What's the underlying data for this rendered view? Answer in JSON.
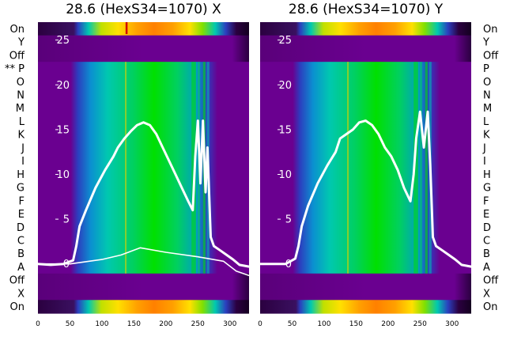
{
  "chart_data": [
    {
      "type": "heatmap",
      "title": "28.6 (HexS34=1070) X",
      "row_labels": [
        "On",
        "Y",
        "Off",
        "** P",
        "O",
        "N",
        "M",
        "L",
        "K",
        "J",
        "I",
        "H",
        "G",
        "F",
        "E",
        "D",
        "C",
        "B",
        "A",
        "Off",
        "X",
        "On"
      ],
      "x_ticks": [
        "0",
        "50",
        "100",
        "150",
        "200",
        "250",
        "300"
      ],
      "xlim": [
        0,
        330
      ],
      "y_ticks": [
        "0",
        "5",
        "10",
        "15",
        "20",
        "25"
      ],
      "ylim": [
        -5.5,
        27
      ],
      "colormap": [
        "#2b0040",
        "#5a007a",
        "#6a0090",
        "#2b3fbf",
        "#0b8fd0",
        "#00c8b0",
        "#00d060",
        "#00e000",
        "#c0e000",
        "#ffe000",
        "#ffa000",
        "#ff7000"
      ],
      "series": [
        {
          "points": [
            [
              0,
              0
            ],
            [
              20,
              -0.1
            ],
            [
              40,
              0
            ],
            [
              55,
              0.4
            ],
            [
              60,
              2
            ],
            [
              65,
              4.2
            ],
            [
              75,
              6
            ],
            [
              90,
              8.5
            ],
            [
              105,
              10.5
            ],
            [
              118,
              12
            ],
            [
              125,
              13
            ],
            [
              135,
              14
            ],
            [
              145,
              14.8
            ],
            [
              155,
              15.5
            ],
            [
              165,
              15.8
            ],
            [
              175,
              15.5
            ],
            [
              185,
              14.5
            ],
            [
              195,
              13
            ],
            [
              205,
              11.5
            ],
            [
              215,
              10
            ],
            [
              225,
              8.5
            ],
            [
              235,
              7
            ],
            [
              242,
              6
            ],
            [
              246,
              12
            ],
            [
              250,
              16
            ],
            [
              254,
              9
            ],
            [
              258,
              16
            ],
            [
              262,
              8
            ],
            [
              265,
              13
            ],
            [
              270,
              3
            ],
            [
              275,
              2
            ],
            [
              285,
              1.5
            ],
            [
              295,
              1
            ],
            [
              305,
              0.5
            ],
            [
              315,
              -0.1
            ],
            [
              330,
              -0.3
            ]
          ]
        },
        {
          "points": [
            [
              0,
              0
            ],
            [
              50,
              0
            ],
            [
              100,
              0.5
            ],
            [
              130,
              1
            ],
            [
              160,
              1.8
            ],
            [
              200,
              1.3
            ],
            [
              250,
              0.8
            ],
            [
              290,
              0.3
            ],
            [
              310,
              -0.8
            ],
            [
              330,
              -1.3
            ]
          ]
        }
      ]
    },
    {
      "type": "heatmap",
      "title": "28.6 (HexS34=1070) Y",
      "row_labels": [
        "On",
        "Y",
        "Off",
        "P",
        "O",
        "N",
        "M",
        "L",
        "K",
        "J",
        "I",
        "H",
        "G",
        "F",
        "E",
        "D",
        "C",
        "B",
        "A",
        "Off",
        "X",
        "On"
      ],
      "x_ticks": [
        "0",
        "50",
        "100",
        "150",
        "200",
        "250",
        "300"
      ],
      "xlim": [
        0,
        330
      ],
      "y_ticks": [
        "0",
        "5",
        "10",
        "15",
        "20",
        "25"
      ],
      "ylim": [
        -5.5,
        27
      ],
      "colormap": [
        "#2b0040",
        "#5a007a",
        "#6a0090",
        "#2b3fbf",
        "#0b8fd0",
        "#00c8b0",
        "#00d060",
        "#00e000",
        "#c0e000",
        "#ffe000",
        "#ffa000",
        "#ff7000"
      ],
      "series": [
        {
          "points": [
            [
              0,
              0
            ],
            [
              20,
              0
            ],
            [
              40,
              0
            ],
            [
              55,
              0.6
            ],
            [
              60,
              2
            ],
            [
              65,
              4.2
            ],
            [
              75,
              6.5
            ],
            [
              90,
              9
            ],
            [
              105,
              11
            ],
            [
              118,
              12.5
            ],
            [
              125,
              14
            ],
            [
              135,
              14.5
            ],
            [
              145,
              15
            ],
            [
              155,
              15.8
            ],
            [
              165,
              16
            ],
            [
              175,
              15.5
            ],
            [
              185,
              14.5
            ],
            [
              195,
              13
            ],
            [
              205,
              12
            ],
            [
              215,
              10.5
            ],
            [
              225,
              8.5
            ],
            [
              235,
              7
            ],
            [
              240,
              10
            ],
            [
              244,
              14
            ],
            [
              250,
              17
            ],
            [
              256,
              13
            ],
            [
              262,
              17
            ],
            [
              266,
              11
            ],
            [
              270,
              3
            ],
            [
              275,
              2
            ],
            [
              285,
              1.5
            ],
            [
              295,
              1
            ],
            [
              305,
              0.5
            ],
            [
              315,
              -0.1
            ],
            [
              330,
              -0.3
            ]
          ]
        }
      ]
    }
  ]
}
